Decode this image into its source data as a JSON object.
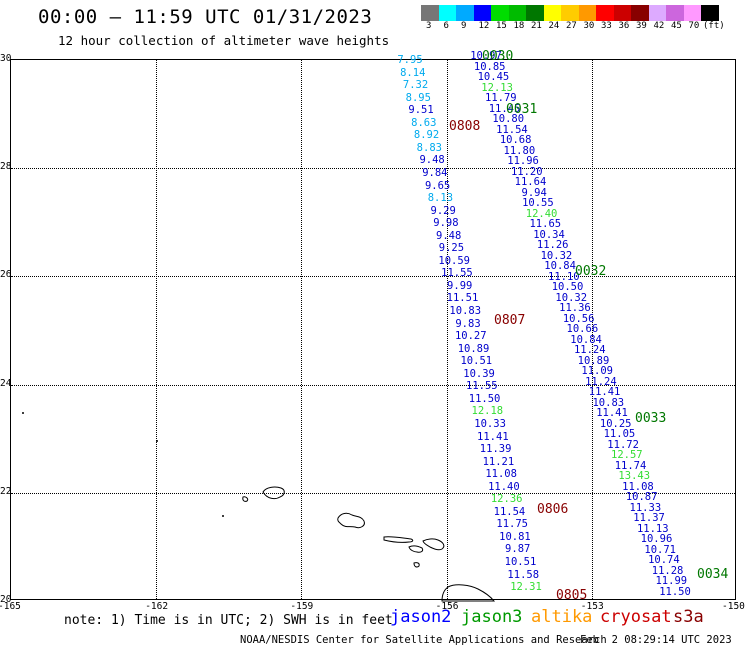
{
  "title": "00:00 — 11:59 UTC 01/31/2023",
  "subtitle": "12 hour collection of altimeter wave heights",
  "legend": {
    "colors": [
      "#777777",
      "#00ffff",
      "#00aaff",
      "#0000ff",
      "#00dd00",
      "#00bb00",
      "#007700",
      "#ffff00",
      "#ffcc00",
      "#ff9900",
      "#ff0000",
      "#cc0000",
      "#880000",
      "#ddaaff",
      "#cc66dd",
      "#ff99ff",
      "#000000"
    ],
    "labels": [
      "3",
      "6",
      "9",
      "12",
      "15",
      "18",
      "21",
      "24",
      "27",
      "30",
      "33",
      "36",
      "39",
      "42",
      "45",
      "70",
      "(ft)"
    ]
  },
  "axes": {
    "lat_labels": [
      "30",
      "28",
      "26",
      "24",
      "22",
      "20"
    ],
    "lon_labels": [
      "-165",
      "-162",
      "-159",
      "-156",
      "-153",
      "-150"
    ]
  },
  "chart_data": {
    "type": "scatter",
    "x_range": [
      -165,
      -150
    ],
    "y_range": [
      20,
      30
    ],
    "value_units": "ft",
    "tracks": [
      {
        "time_label": "0030",
        "values": [
          "10.97",
          "10.85",
          "10.45",
          "12.13",
          "11.79",
          "11.45",
          "10.80",
          "11.54",
          "10.68",
          "11.80",
          "11.96",
          "11.20",
          "11.64",
          "9.94",
          "10.55",
          "12.40",
          "11.65",
          "10.34",
          "11.26",
          "10.32",
          "10.84",
          "11.10",
          "10.50",
          "10.32",
          "11.36",
          "10.56",
          "10.66",
          "10.84",
          "11.24",
          "10.89",
          "11.09",
          "11.24",
          "11.41",
          "10.83",
          "11.41",
          "10.25",
          "11.05",
          "11.72",
          "12.57",
          "11.74",
          "13.43",
          "11.08",
          "10.87",
          "11.33",
          "11.37",
          "11.13",
          "10.96",
          "10.71",
          "10.74",
          "11.28",
          "11.99",
          "11.50"
        ]
      },
      {
        "time_label": "0808",
        "values": [
          "7.95",
          "8.14",
          "7.32",
          "8.95",
          "9.51",
          "8.63",
          "8.92",
          "8.83",
          "9.48",
          "9.84",
          "9.65",
          "8.13",
          "9.29",
          "9.98",
          "9.48",
          "9.25",
          "10.59",
          "11.55",
          "9.99",
          "11.51",
          "10.83",
          "9.83",
          "10.27",
          "10.89",
          "10.51",
          "10.39",
          "11.55",
          "11.50",
          "12.18",
          "10.33",
          "11.41",
          "11.39",
          "11.21",
          "11.08",
          "11.40",
          "12.36",
          "11.54",
          "11.75",
          "10.81",
          "9.87",
          "10.51",
          "11.58",
          "12.31"
        ]
      }
    ],
    "time_labels": [
      "0030",
      "0031",
      "0032",
      "0033",
      "0034",
      "0808",
      "0807",
      "0806",
      "0805"
    ]
  },
  "note": "note: 1) Time is in UTC; 2) SWH is in feet",
  "missions": [
    {
      "name": "jason2",
      "color": "#0000ff"
    },
    {
      "name": "jason3",
      "color": "#009900"
    },
    {
      "name": "altika",
      "color": "#ff9900"
    },
    {
      "name": "cryosat",
      "color": "#cc0000"
    },
    {
      "name": "s3a",
      "color": "#880000"
    }
  ],
  "footer": {
    "credit": "NOAA/NESDIS Center for Satellite Applications and Research",
    "timestamp": "Feb  2 08:29:14 UTC 2023"
  }
}
